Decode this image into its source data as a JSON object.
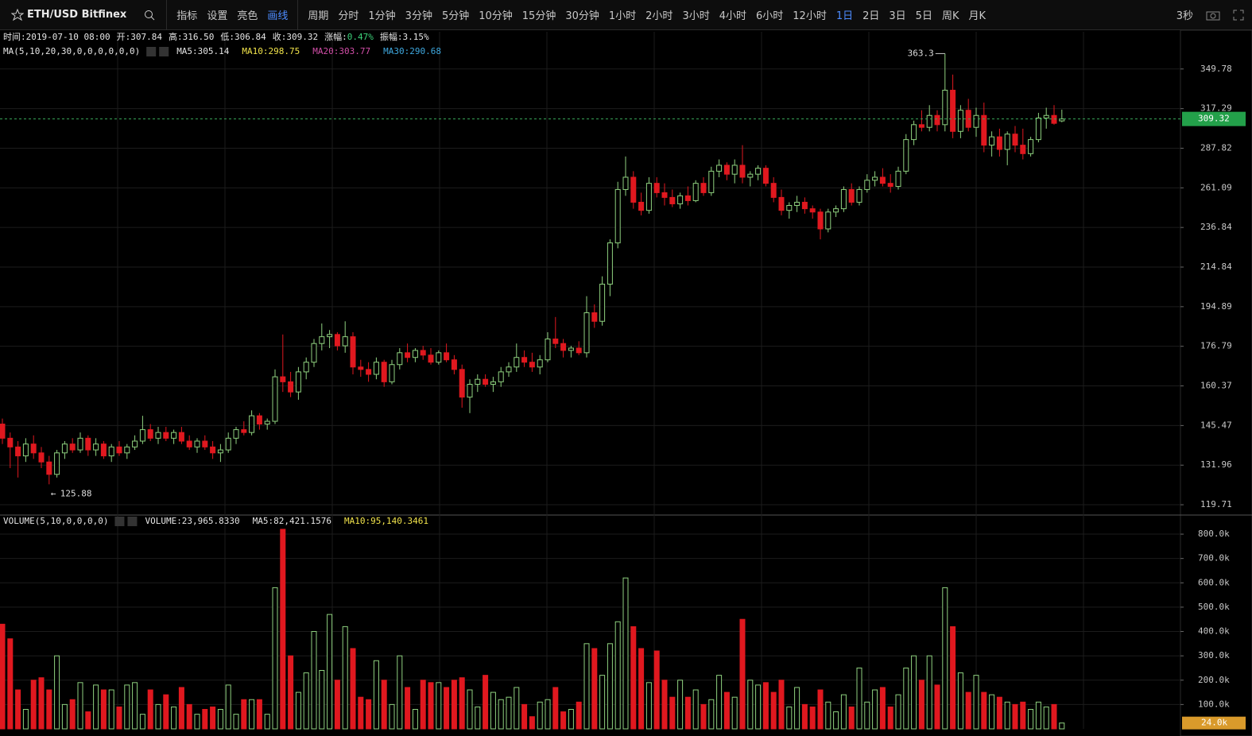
{
  "toolbar": {
    "symbol": "ETH/USD Bitfinex",
    "tools": [
      "指标",
      "设置",
      "亮色",
      "画线"
    ],
    "active_tool_index": 3,
    "period_menu": "周期",
    "periods": [
      "分时",
      "1分钟",
      "3分钟",
      "5分钟",
      "10分钟",
      "15分钟",
      "30分钟",
      "1小时",
      "2小时",
      "3小时",
      "4小时",
      "6小时",
      "12小时",
      "1日",
      "2日",
      "3日",
      "5日",
      "周K",
      "月K"
    ],
    "active_period_index": 13,
    "refresh": "3秒"
  },
  "info": [
    {
      "k": "时间:",
      "v": "2019-07-10 08:00"
    },
    {
      "k": "开:",
      "v": "307.84"
    },
    {
      "k": "高:",
      "v": "316.50"
    },
    {
      "k": "低:",
      "v": "306.84"
    },
    {
      "k": "收:",
      "v": "309.32"
    },
    {
      "k": "涨幅:",
      "v": "0.47%",
      "color": "#3dd27a"
    },
    {
      "k": "振幅:",
      "v": "3.15%"
    }
  ],
  "ma_legend": {
    "title": "MA(5,10,20,30,0,0,0,0,0,0)",
    "items": [
      {
        "text": "MA5:305.14",
        "color": "#e6e6e6"
      },
      {
        "text": "MA10:298.75",
        "color": "#f2e44b"
      },
      {
        "text": "MA20:303.77",
        "color": "#d24ea8"
      },
      {
        "text": "MA30:290.68",
        "color": "#3fa9e0"
      }
    ]
  },
  "volume_legend": {
    "title": "VOLUME(5,10,0,0,0,0)",
    "items": [
      {
        "text": "VOLUME:23,965.8330",
        "color": "#e6e6e6"
      },
      {
        "text": "MA5:82,421.1576",
        "color": "#e6e6e6"
      },
      {
        "text": "MA10:95,140.3461",
        "color": "#f2e44b"
      }
    ]
  },
  "chart_data": {
    "type": "candlestick",
    "log": true,
    "up_color": "#8fd17f",
    "down_color": "#e0181f",
    "grid": true,
    "ylim": [
      117.4,
      383.3
    ],
    "yticks": [
      119.71,
      131.96,
      145.47,
      160.37,
      176.79,
      194.89,
      214.84,
      236.84,
      261.09,
      287.82,
      317.29,
      349.78
    ],
    "candles": [
      [
        146,
        148,
        139,
        141
      ],
      [
        141,
        143,
        131,
        138
      ],
      [
        138,
        140,
        128,
        135
      ],
      [
        135,
        141,
        133,
        139
      ],
      [
        139,
        142,
        134,
        136
      ],
      [
        136,
        138,
        131,
        133
      ],
      [
        133,
        135,
        125.88,
        129
      ],
      [
        129,
        137,
        128,
        136
      ],
      [
        136,
        140,
        134,
        139
      ],
      [
        139,
        141,
        136,
        137
      ],
      [
        137,
        143,
        136,
        141
      ],
      [
        141,
        142,
        135,
        137
      ],
      [
        137,
        141,
        135,
        139
      ],
      [
        139,
        140,
        134,
        135
      ],
      [
        135,
        139,
        133,
        138
      ],
      [
        138,
        140,
        135,
        136
      ],
      [
        136,
        139,
        134,
        138
      ],
      [
        138,
        142,
        137,
        140
      ],
      [
        140,
        149,
        139,
        144
      ],
      [
        144,
        146,
        140,
        141
      ],
      [
        141,
        145,
        139,
        143
      ],
      [
        143,
        145,
        140,
        141
      ],
      [
        141,
        144,
        139,
        143
      ],
      [
        143,
        145,
        139,
        140
      ],
      [
        140,
        142,
        137,
        138
      ],
      [
        138,
        141,
        136,
        140
      ],
      [
        140,
        142,
        137,
        138
      ],
      [
        138,
        140,
        134,
        136
      ],
      [
        136,
        139,
        133,
        137
      ],
      [
        137,
        143,
        136,
        141
      ],
      [
        141,
        145,
        139,
        144
      ],
      [
        144,
        147,
        142,
        143
      ],
      [
        143,
        151,
        142,
        149
      ],
      [
        149,
        150,
        144,
        146
      ],
      [
        146,
        148,
        144,
        147
      ],
      [
        147,
        167,
        146,
        164
      ],
      [
        164,
        182,
        158,
        162
      ],
      [
        162,
        166,
        156,
        158
      ],
      [
        158,
        168,
        155,
        166
      ],
      [
        166,
        172,
        163,
        170
      ],
      [
        170,
        180,
        168,
        178
      ],
      [
        178,
        187,
        175,
        181
      ],
      [
        181,
        184,
        176,
        182
      ],
      [
        182,
        183,
        175,
        177
      ],
      [
        177,
        188,
        174,
        181
      ],
      [
        181,
        183,
        165,
        168
      ],
      [
        168,
        171,
        164,
        167
      ],
      [
        167,
        170,
        162,
        165
      ],
      [
        165,
        172,
        163,
        170
      ],
      [
        170,
        171,
        160,
        162
      ],
      [
        162,
        171,
        161,
        169
      ],
      [
        169,
        176,
        167,
        174
      ],
      [
        174,
        178,
        170,
        172
      ],
      [
        172,
        176,
        170,
        175
      ],
      [
        175,
        177,
        171,
        173
      ],
      [
        173,
        176,
        169,
        170
      ],
      [
        170,
        175,
        169,
        174
      ],
      [
        174,
        178,
        170,
        171
      ],
      [
        171,
        173,
        165,
        167
      ],
      [
        167,
        169,
        152,
        156
      ],
      [
        156,
        163,
        150,
        161
      ],
      [
        161,
        165,
        158,
        163
      ],
      [
        163,
        165,
        160,
        161
      ],
      [
        161,
        164,
        158,
        162
      ],
      [
        162,
        168,
        160,
        166
      ],
      [
        166,
        170,
        164,
        168
      ],
      [
        168,
        178,
        166,
        172
      ],
      [
        172,
        175,
        168,
        170
      ],
      [
        170,
        174,
        166,
        168
      ],
      [
        168,
        173,
        165,
        171
      ],
      [
        171,
        183,
        170,
        180
      ],
      [
        180,
        190,
        176,
        178
      ],
      [
        178,
        180,
        172,
        175
      ],
      [
        175,
        177,
        172,
        176
      ],
      [
        176,
        179,
        173,
        174
      ],
      [
        174,
        200,
        172,
        192
      ],
      [
        192,
        196,
        185,
        188
      ],
      [
        188,
        210,
        186,
        206
      ],
      [
        206,
        230,
        200,
        228
      ],
      [
        228,
        265,
        225,
        260
      ],
      [
        260,
        282,
        256,
        268
      ],
      [
        268,
        272,
        248,
        252
      ],
      [
        252,
        258,
        244,
        247
      ],
      [
        247,
        268,
        245,
        264
      ],
      [
        264,
        268,
        255,
        258
      ],
      [
        258,
        264,
        250,
        255
      ],
      [
        255,
        260,
        249,
        251
      ],
      [
        251,
        258,
        248,
        256
      ],
      [
        256,
        262,
        250,
        253
      ],
      [
        253,
        266,
        252,
        264
      ],
      [
        264,
        268,
        256,
        258
      ],
      [
        258,
        275,
        256,
        272
      ],
      [
        272,
        280,
        268,
        276
      ],
      [
        276,
        278,
        266,
        270
      ],
      [
        270,
        280,
        264,
        276
      ],
      [
        276,
        290,
        264,
        268
      ],
      [
        268,
        272,
        262,
        270
      ],
      [
        270,
        276,
        266,
        274
      ],
      [
        274,
        276,
        262,
        264
      ],
      [
        264,
        268,
        252,
        255
      ],
      [
        255,
        260,
        244,
        247
      ],
      [
        247,
        252,
        242,
        250
      ],
      [
        250,
        256,
        246,
        252
      ],
      [
        252,
        255,
        245,
        248
      ],
      [
        248,
        250,
        242,
        246
      ],
      [
        246,
        248,
        230,
        236
      ],
      [
        236,
        248,
        234,
        246
      ],
      [
        246,
        250,
        243,
        248
      ],
      [
        248,
        262,
        246,
        260
      ],
      [
        260,
        264,
        250,
        252
      ],
      [
        252,
        262,
        250,
        260
      ],
      [
        260,
        270,
        258,
        266
      ],
      [
        266,
        272,
        262,
        268
      ],
      [
        268,
        274,
        262,
        264
      ],
      [
        264,
        270,
        258,
        262
      ],
      [
        262,
        275,
        260,
        272
      ],
      [
        272,
        298,
        270,
        294
      ],
      [
        294,
        308,
        290,
        305
      ],
      [
        305,
        316,
        300,
        303
      ],
      [
        303,
        320,
        300,
        312
      ],
      [
        312,
        316,
        300,
        305
      ],
      [
        305,
        363.3,
        300,
        332
      ],
      [
        332,
        345,
        295,
        300
      ],
      [
        300,
        320,
        295,
        316
      ],
      [
        316,
        325,
        300,
        303
      ],
      [
        303,
        318,
        296,
        312
      ],
      [
        312,
        322,
        285,
        290
      ],
      [
        290,
        300,
        282,
        296
      ],
      [
        296,
        302,
        282,
        287
      ],
      [
        287,
        300,
        276,
        298
      ],
      [
        298,
        304,
        285,
        290
      ],
      [
        290,
        302,
        280,
        284
      ],
      [
        284,
        296,
        282,
        294
      ],
      [
        294,
        314,
        292,
        310
      ],
      [
        310,
        318,
        302,
        312
      ],
      [
        312,
        320,
        305,
        306
      ],
      [
        307.84,
        316.5,
        306.84,
        309.32
      ]
    ],
    "volume": {
      "ylim": [
        0,
        872000
      ],
      "yticks": [
        {
          "value": 100000,
          "label": "100.0k"
        },
        {
          "value": 200000,
          "label": "200.0k"
        },
        {
          "value": 300000,
          "label": "300.0k"
        },
        {
          "value": 400000,
          "label": "400.0k"
        },
        {
          "value": 500000,
          "label": "500.0k"
        },
        {
          "value": 600000,
          "label": "600.0k"
        },
        {
          "value": 700000,
          "label": "700.0k"
        },
        {
          "value": 800000,
          "label": "800.0k"
        }
      ],
      "last_label": "24.0k",
      "values": [
        430000,
        370000,
        160000,
        80000,
        200000,
        210000,
        160000,
        300000,
        100000,
        120000,
        190000,
        70000,
        180000,
        160000,
        160000,
        90000,
        180000,
        190000,
        60000,
        160000,
        100000,
        140000,
        90000,
        170000,
        100000,
        60000,
        80000,
        90000,
        80000,
        180000,
        60000,
        120000,
        120000,
        120000,
        60000,
        580000,
        820000,
        300000,
        150000,
        230000,
        400000,
        240000,
        470000,
        200000,
        420000,
        330000,
        130000,
        120000,
        280000,
        200000,
        100000,
        300000,
        170000,
        80000,
        200000,
        190000,
        190000,
        170000,
        200000,
        210000,
        160000,
        90000,
        220000,
        150000,
        120000,
        130000,
        170000,
        100000,
        50000,
        110000,
        120000,
        170000,
        70000,
        80000,
        110000,
        350000,
        330000,
        220000,
        350000,
        440000,
        620000,
        420000,
        330000,
        190000,
        320000,
        200000,
        130000,
        200000,
        130000,
        160000,
        100000,
        120000,
        220000,
        150000,
        130000,
        450000,
        200000,
        180000,
        190000,
        150000,
        200000,
        90000,
        170000,
        100000,
        90000,
        160000,
        110000,
        70000,
        140000,
        90000,
        250000,
        110000,
        160000,
        170000,
        90000,
        140000,
        250000,
        300000,
        200000,
        300000,
        180000,
        580000,
        420000,
        230000,
        150000,
        220000,
        150000,
        140000,
        130000,
        110000,
        100000,
        110000,
        80000,
        110000,
        90000,
        100000,
        23965.833
      ]
    }
  }
}
